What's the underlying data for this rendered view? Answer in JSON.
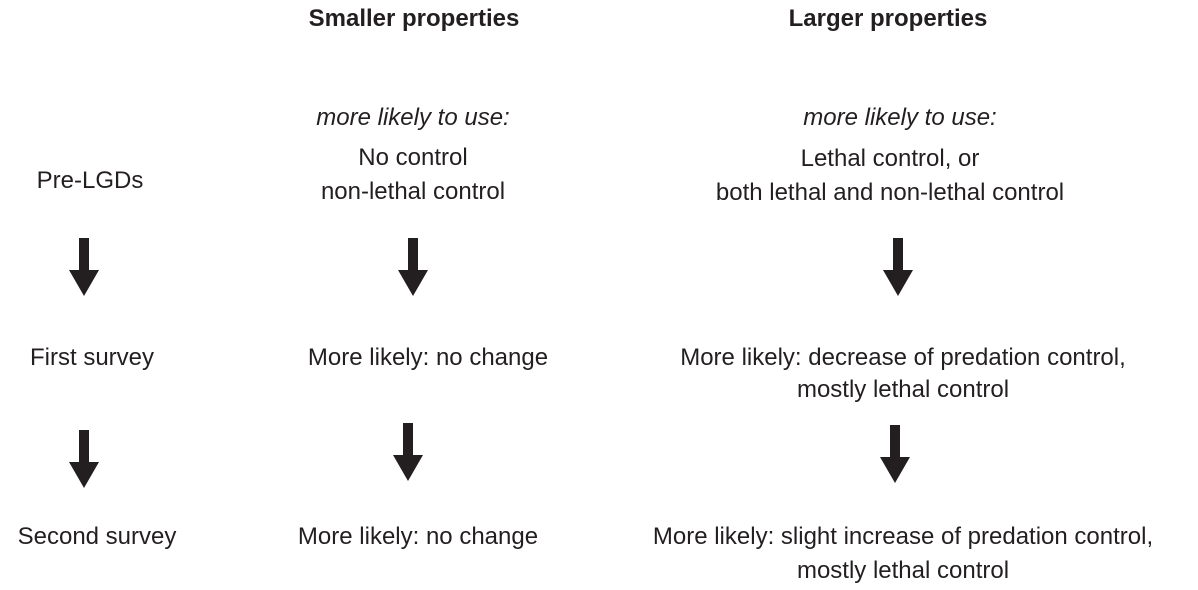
{
  "headers": {
    "smaller": "Smaller properties",
    "larger": "Larger properties"
  },
  "stages": {
    "pre": "Pre-LGDs",
    "first": "First survey",
    "second": "Second survey"
  },
  "smaller": {
    "likely_label": "more likely to use:",
    "pre_line1": "No control",
    "pre_line2": "non-lethal control",
    "first": "More likely: no change",
    "second": "More likely: no change"
  },
  "larger": {
    "likely_label": "more likely to use:",
    "pre_line1": "Lethal control, or",
    "pre_line2": "both lethal and non-lethal control",
    "first_line1": "More likely: decrease of predation control,",
    "first_line2": "mostly lethal control",
    "second_line1": "More likely: slight increase of predation control,",
    "second_line2": "mostly lethal control"
  },
  "icons": {
    "arrow": "down-arrow-icon"
  },
  "colors": {
    "text": "#231f20",
    "arrow": "#231f20"
  }
}
